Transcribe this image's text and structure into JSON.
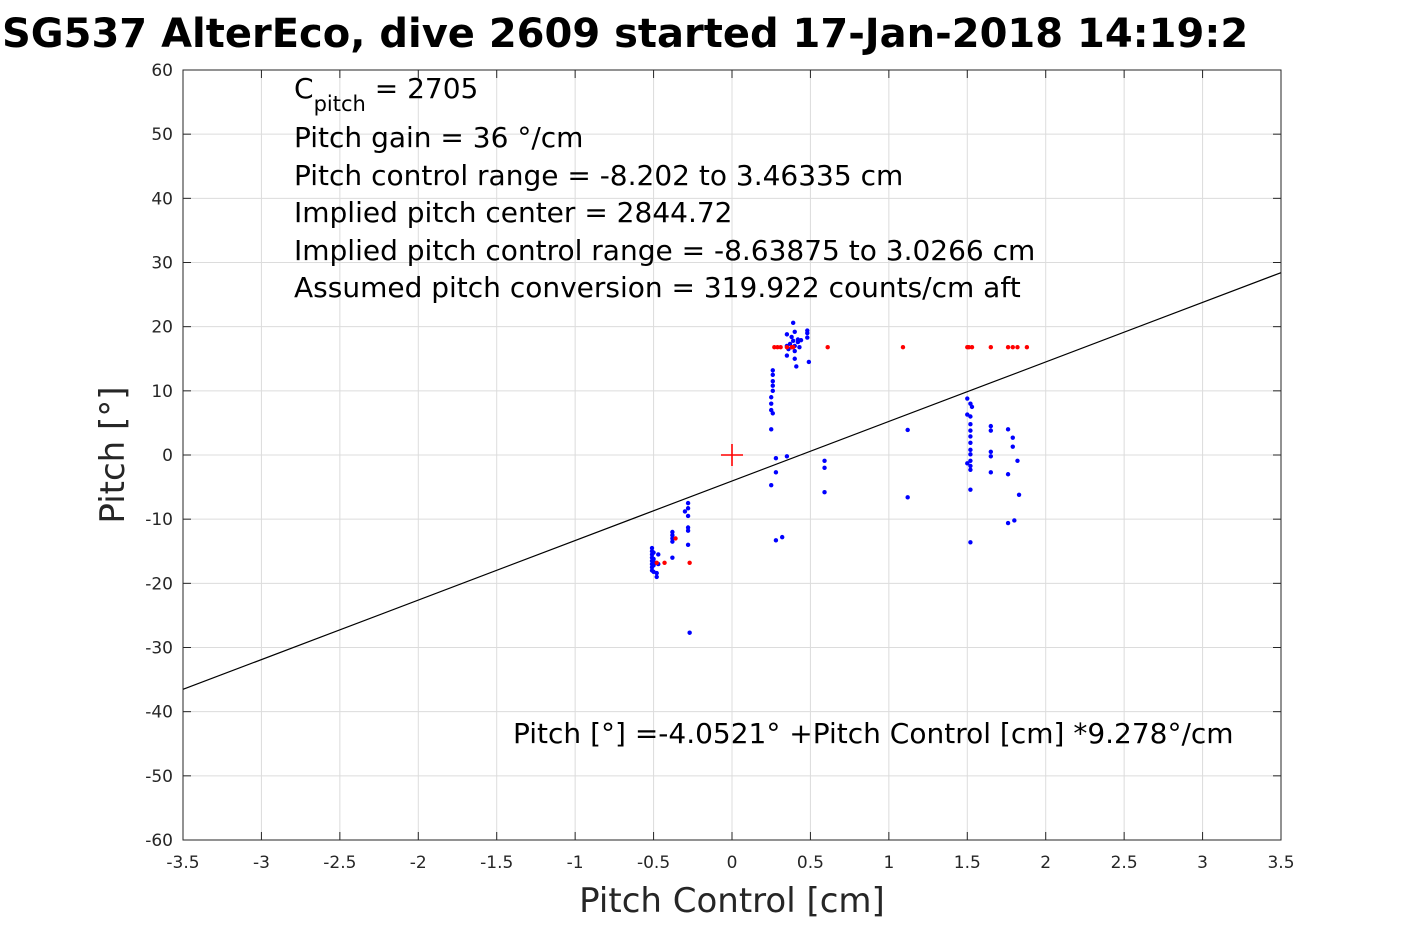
{
  "chart_data": {
    "type": "scatter",
    "title": "SG537 AlterEco, dive 2609 started 17-Jan-2018 14:19:2",
    "xlabel": "Pitch Control [cm]",
    "ylabel": "Pitch [°]",
    "xlim": [
      -3.5,
      3.5
    ],
    "ylim": [
      -60,
      60
    ],
    "xticks": [
      -3.5,
      -3,
      -2.5,
      -2,
      -1.5,
      -1,
      -0.5,
      0,
      0.5,
      1,
      1.5,
      2,
      2.5,
      3,
      3.5
    ],
    "yticks": [
      -60,
      -50,
      -40,
      -30,
      -20,
      -10,
      0,
      10,
      20,
      30,
      40,
      50,
      60
    ],
    "xtick_labels": [
      "-3.5",
      "-3",
      "-2.5",
      "-2",
      "-1.5",
      "-1",
      "-0.5",
      "0",
      "0.5",
      "1",
      "1.5",
      "2",
      "2.5",
      "3",
      "3.5"
    ],
    "ytick_labels": [
      "-60",
      "-50",
      "-40",
      "-30",
      "-20",
      "-10",
      "0",
      "10",
      "20",
      "30",
      "40",
      "50",
      "60"
    ],
    "grid": true,
    "colors": {
      "blue": "#0000ff",
      "red": "#ff0000",
      "line": "#000000",
      "grid": "#dcdcdc"
    },
    "annotations": {
      "c_pitch_main": "C",
      "c_pitch_sub": "pitch",
      "c_pitch_value": " = 2705",
      "lines": [
        "Pitch gain = 36 °/cm",
        "Pitch control range = -8.202 to 3.46335 cm",
        "Implied pitch center = 2844.72",
        "Implied pitch control range = -8.63875 to 3.0266 cm",
        "Assumed pitch conversion = 319.922 counts/cm aft"
      ],
      "fit_equation": "Pitch [°] =-4.0521° +Pitch Control [cm] *9.278°/cm"
    },
    "series": [
      {
        "color": "blue",
        "points": [
          [
            -0.51,
            -14.5
          ],
          [
            -0.51,
            -15.0
          ],
          [
            -0.51,
            -15.5
          ],
          [
            -0.51,
            -16.0
          ],
          [
            -0.51,
            -16.5
          ],
          [
            -0.51,
            -17.0
          ],
          [
            -0.51,
            -17.5
          ],
          [
            -0.51,
            -18.0
          ],
          [
            -0.5,
            -15.2
          ],
          [
            -0.5,
            -16.2
          ],
          [
            -0.5,
            -17.2
          ],
          [
            -0.5,
            -18.2
          ],
          [
            -0.49,
            -16.8
          ],
          [
            -0.48,
            -19.0
          ],
          [
            -0.48,
            -18.4
          ],
          [
            -0.47,
            -15.5
          ],
          [
            -0.47,
            -17.0
          ],
          [
            -0.38,
            -12.0
          ],
          [
            -0.38,
            -12.5
          ],
          [
            -0.38,
            -13.0
          ],
          [
            -0.38,
            -13.5
          ],
          [
            -0.38,
            -16.0
          ],
          [
            -0.3,
            -8.8
          ],
          [
            -0.28,
            -7.5
          ],
          [
            -0.28,
            -8.3
          ],
          [
            -0.28,
            -9.5
          ],
          [
            -0.28,
            -11.3
          ],
          [
            -0.28,
            -11.8
          ],
          [
            -0.28,
            -14.0
          ],
          [
            -0.27,
            -27.7
          ],
          [
            0.25,
            4.0
          ],
          [
            0.25,
            -4.7
          ],
          [
            0.25,
            7.0
          ],
          [
            0.25,
            8.0
          ],
          [
            0.25,
            9.0
          ],
          [
            0.26,
            10.0
          ],
          [
            0.26,
            10.8
          ],
          [
            0.26,
            11.5
          ],
          [
            0.26,
            12.5
          ],
          [
            0.26,
            13.2
          ],
          [
            0.26,
            6.5
          ],
          [
            0.28,
            -0.5
          ],
          [
            0.28,
            -2.7
          ],
          [
            0.28,
            -13.3
          ],
          [
            0.32,
            -12.8
          ],
          [
            0.35,
            -0.2
          ],
          [
            0.35,
            15.5
          ],
          [
            0.35,
            17.0
          ],
          [
            0.35,
            18.8
          ],
          [
            0.36,
            16.5
          ],
          [
            0.37,
            17.3
          ],
          [
            0.38,
            18.4
          ],
          [
            0.38,
            16.8
          ],
          [
            0.39,
            17.8
          ],
          [
            0.39,
            20.6
          ],
          [
            0.4,
            15.0
          ],
          [
            0.4,
            16.2
          ],
          [
            0.4,
            17.0
          ],
          [
            0.4,
            19.2
          ],
          [
            0.41,
            13.8
          ],
          [
            0.42,
            17.6
          ],
          [
            0.42,
            18.0
          ],
          [
            0.43,
            16.8
          ],
          [
            0.44,
            17.9
          ],
          [
            0.48,
            19.0
          ],
          [
            0.48,
            19.4
          ],
          [
            0.48,
            18.3
          ],
          [
            0.49,
            14.5
          ],
          [
            0.59,
            -0.9
          ],
          [
            0.59,
            -2.0
          ],
          [
            0.59,
            -5.8
          ],
          [
            1.12,
            3.9
          ],
          [
            1.12,
            -6.6
          ],
          [
            1.5,
            8.8
          ],
          [
            1.5,
            6.3
          ],
          [
            1.5,
            -1.3
          ],
          [
            1.52,
            8.0
          ],
          [
            1.52,
            6.0
          ],
          [
            1.52,
            4.8
          ],
          [
            1.52,
            3.8
          ],
          [
            1.52,
            2.9
          ],
          [
            1.52,
            1.9
          ],
          [
            1.52,
            0.8
          ],
          [
            1.52,
            0.1
          ],
          [
            1.52,
            -0.9
          ],
          [
            1.52,
            -1.7
          ],
          [
            1.52,
            -2.3
          ],
          [
            1.52,
            -5.4
          ],
          [
            1.52,
            -13.6
          ],
          [
            1.53,
            7.5
          ],
          [
            1.65,
            4.5
          ],
          [
            1.65,
            3.8
          ],
          [
            1.65,
            0.5
          ],
          [
            1.65,
            -0.2
          ],
          [
            1.65,
            -2.7
          ],
          [
            1.76,
            4.0
          ],
          [
            1.76,
            -3.0
          ],
          [
            1.76,
            -10.6
          ],
          [
            1.79,
            2.7
          ],
          [
            1.79,
            1.3
          ],
          [
            1.8,
            -10.2
          ],
          [
            1.82,
            -0.9
          ],
          [
            1.83,
            -6.2
          ]
        ]
      },
      {
        "color": "red",
        "points": [
          [
            -0.48,
            -16.8
          ],
          [
            -0.43,
            -16.8
          ],
          [
            -0.36,
            -13.0
          ],
          [
            -0.27,
            -16.8
          ],
          [
            0.27,
            16.8
          ],
          [
            0.29,
            16.8
          ],
          [
            0.31,
            16.8
          ],
          [
            0.35,
            16.8
          ],
          [
            0.38,
            16.8
          ],
          [
            0.39,
            16.8
          ],
          [
            0.61,
            16.8
          ],
          [
            1.09,
            16.8
          ],
          [
            1.5,
            16.8
          ],
          [
            1.51,
            16.8
          ],
          [
            1.53,
            16.8
          ],
          [
            1.65,
            16.8
          ],
          [
            1.76,
            16.8
          ],
          [
            1.79,
            16.8
          ],
          [
            1.82,
            16.8
          ],
          [
            1.88,
            16.8
          ]
        ]
      }
    ],
    "fit_line": {
      "intercept": -4.0521,
      "slope": 9.278
    },
    "center_marker": {
      "x": 0,
      "y": 0,
      "color": "red"
    }
  }
}
